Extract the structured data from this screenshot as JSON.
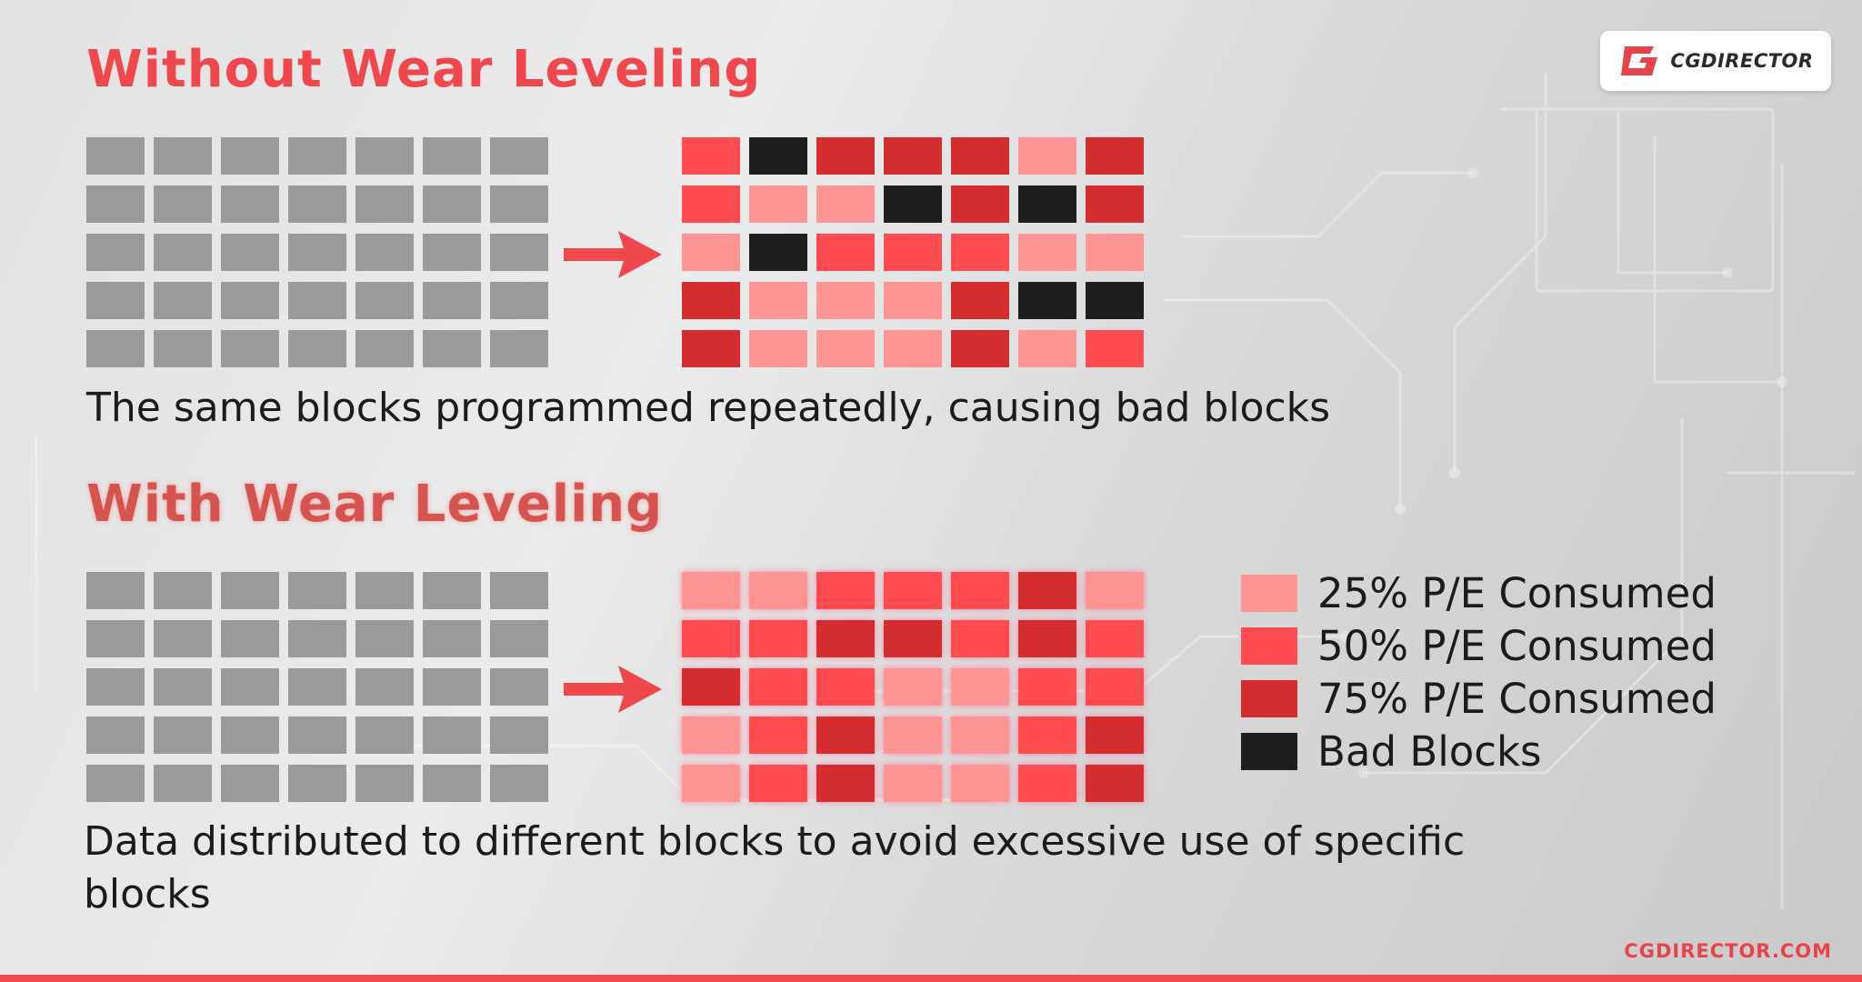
{
  "top": {
    "title": "Without Wear Leveling",
    "caption": "The same blocks programmed repeatedly, causing bad blocks",
    "result_grid": [
      [
        "m50",
        "bad",
        "m75",
        "m75",
        "m75",
        "m25",
        "m75"
      ],
      [
        "m50",
        "m25",
        "m25",
        "bad",
        "m75",
        "bad",
        "m75"
      ],
      [
        "m25",
        "bad",
        "m50",
        "m50",
        "m50",
        "m25",
        "m25"
      ],
      [
        "m75",
        "m25",
        "m25",
        "m25",
        "m75",
        "bad",
        "bad"
      ],
      [
        "m75",
        "m25",
        "m25",
        "m25",
        "m75",
        "m25",
        "m50"
      ]
    ]
  },
  "bottom": {
    "title": "With Wear Leveling",
    "caption": "Data distributed to different blocks to avoid excessive use of specific blocks",
    "result_grid": [
      [
        "m25",
        "m25",
        "m50",
        "m50",
        "m50",
        "m75",
        "m25"
      ],
      [
        "m50",
        "m50",
        "m75",
        "m75",
        "m50",
        "m75",
        "m50"
      ],
      [
        "m75",
        "m50",
        "m50",
        "m25",
        "m25",
        "m50",
        "m50"
      ],
      [
        "m25",
        "m50",
        "m75",
        "m25",
        "m25",
        "m50",
        "m75"
      ],
      [
        "m25",
        "m50",
        "m75",
        "m25",
        "m25",
        "m50",
        "m75"
      ]
    ]
  },
  "grid_rows": 5,
  "grid_cols": 7,
  "legend": [
    {
      "key": "m25",
      "label": "25% P/E Consumed",
      "color": "#ff9495"
    },
    {
      "key": "m50",
      "label": "50% P/E Consumed",
      "color": "#ff4c50"
    },
    {
      "key": "m75",
      "label": "75% P/E Consumed",
      "color": "#d42d2f"
    },
    {
      "key": "bad",
      "label": "Bad Blocks",
      "color": "#1e1e1e"
    }
  ],
  "colors": {
    "unused_block": "#9a9a9a",
    "arrow": "#f0474c",
    "accent": "#f0474c"
  },
  "logo": {
    "text": "CGDIRECTOR"
  },
  "site_url": "CGDIRECTOR.COM"
}
